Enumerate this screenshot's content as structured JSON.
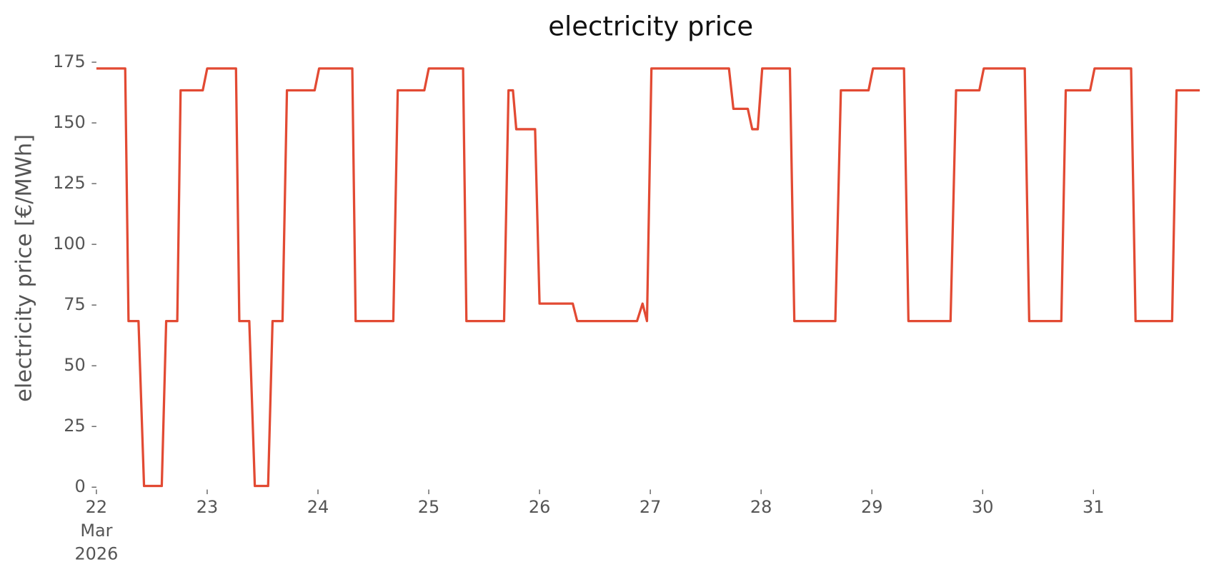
{
  "chart_data": {
    "type": "line",
    "title": "electricity price",
    "ylabel": "electricity price [€/MWh]",
    "color": "#e24a33",
    "x": [
      22,
      22.26,
      22.29,
      22.38,
      22.43,
      22.59,
      22.63,
      22.73,
      22.76,
      22.96,
      23.0,
      23.26,
      23.29,
      23.38,
      23.43,
      23.55,
      23.59,
      23.68,
      23.72,
      23.97,
      24.01,
      24.31,
      24.34,
      24.68,
      24.72,
      24.96,
      25.0,
      25.31,
      25.34,
      25.68,
      25.72,
      25.76,
      25.79,
      25.96,
      26.0,
      26.3,
      26.34,
      26.88,
      26.93,
      26.97,
      27.01,
      27.71,
      27.75,
      27.88,
      27.92,
      27.97,
      28.01,
      28.26,
      28.3,
      28.67,
      28.72,
      28.97,
      29.01,
      29.29,
      29.33,
      29.71,
      29.76,
      29.97,
      30.01,
      30.38,
      30.42,
      30.71,
      30.75,
      30.97,
      31.01,
      31.34,
      31.38,
      31.71,
      31.75,
      31.96
    ],
    "values": [
      172.4,
      172.4,
      68.4,
      68.4,
      0.5,
      0.5,
      68.4,
      68.4,
      163.4,
      163.4,
      172.4,
      172.4,
      68.4,
      68.4,
      0.5,
      0.5,
      68.4,
      68.4,
      163.4,
      163.4,
      172.4,
      172.4,
      68.4,
      68.4,
      163.4,
      163.4,
      172.4,
      172.4,
      68.4,
      68.4,
      163.4,
      163.4,
      147.4,
      147.4,
      75.6,
      75.6,
      68.4,
      68.4,
      75.6,
      68.4,
      172.4,
      172.4,
      155.8,
      155.8,
      147.4,
      147.4,
      172.4,
      172.4,
      68.4,
      68.4,
      163.4,
      163.4,
      172.4,
      172.4,
      68.4,
      68.4,
      163.4,
      163.4,
      172.4,
      172.4,
      68.4,
      68.4,
      163.4,
      163.4,
      172.4,
      172.4,
      68.4,
      68.4,
      163.4,
      163.4
    ],
    "xlim": [
      22,
      32
    ],
    "ylim": [
      0,
      175
    ],
    "xticks": [
      {
        "value": 22,
        "label": "22\nMar\n2026"
      },
      23,
      24,
      25,
      26,
      27,
      28,
      29,
      30,
      31
    ],
    "yticks": [
      0,
      25,
      50,
      75,
      100,
      125,
      150,
      175
    ],
    "grid": false
  }
}
